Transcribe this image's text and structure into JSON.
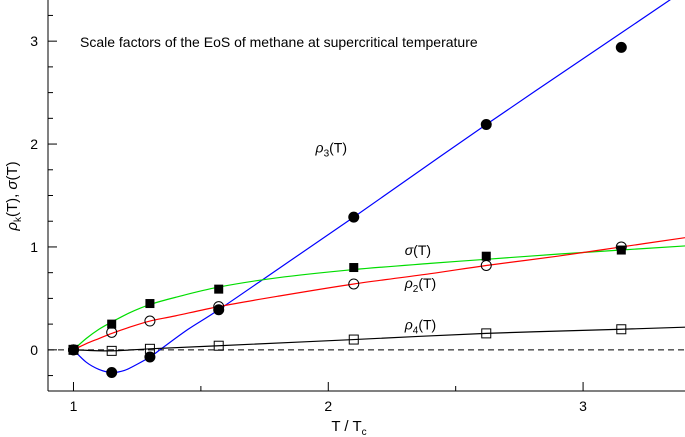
{
  "chart_data": {
    "type": "line",
    "title": "",
    "annotation": "Scale factors of the EoS of methane at supercritical temperature",
    "xlabel": {
      "main": "T / T",
      "sub": "c"
    },
    "ylabel": "ρ_k(T), σ(T)",
    "ylabel_parts": {
      "rho": "ρ",
      "k": "k",
      "rest1": "(T), ",
      "sigma": "σ",
      "rest2": "(T)"
    },
    "xlim": [
      0.9,
      3.4
    ],
    "ylim": [
      -0.4,
      3.4
    ],
    "xticks_major": [
      1,
      2,
      3
    ],
    "xticks_minor": [
      1.5,
      2.5
    ],
    "yticks_major": [
      0,
      1,
      2,
      3
    ],
    "yticks_minor": [
      -0.25,
      0.25,
      0.5,
      0.75,
      1.25,
      1.5,
      1.75,
      2.25,
      2.5,
      2.75,
      3.25
    ],
    "grid": false,
    "reference_line": {
      "y": 0,
      "style": "dashed",
      "color": "#000000"
    },
    "series": [
      {
        "name": "ρ3(T)",
        "label": {
          "main": "ρ",
          "sub": "3",
          "suffix": "(T)",
          "x": 1.95,
          "y": 1.92
        },
        "color": "#0000ff",
        "marker": "filled-circle",
        "points": {
          "x": [
            1.0,
            1.15,
            1.3,
            1.57,
            2.1,
            2.62,
            3.15
          ],
          "y": [
            0.0,
            -0.22,
            -0.07,
            0.39,
            1.29,
            2.19,
            2.94
          ]
        },
        "curve": {
          "x": [
            1.0,
            1.05,
            1.1,
            1.15,
            1.2,
            1.25,
            1.3,
            1.35,
            1.45,
            1.57,
            1.8,
            2.1,
            2.62,
            3.15,
            3.4
          ],
          "y": [
            0.0,
            -0.12,
            -0.19,
            -0.22,
            -0.2,
            -0.14,
            -0.07,
            0.02,
            0.2,
            0.39,
            0.78,
            1.29,
            2.19,
            3.08,
            3.5
          ]
        }
      },
      {
        "name": "σ(T)",
        "label": {
          "main": "σ",
          "sub": "",
          "suffix": "(T)",
          "x": 2.3,
          "y": 0.92
        },
        "color": "#00dd00",
        "marker": "filled-square",
        "points": {
          "x": [
            1.0,
            1.15,
            1.3,
            1.57,
            2.1,
            2.62,
            3.15
          ],
          "y": [
            0.0,
            0.25,
            0.45,
            0.59,
            0.8,
            0.91,
            0.97
          ]
        },
        "curve": {
          "x": [
            1.0,
            1.05,
            1.1,
            1.15,
            1.22,
            1.3,
            1.4,
            1.57,
            1.8,
            2.1,
            2.4,
            2.62,
            2.9,
            3.15,
            3.4
          ],
          "y": [
            0.0,
            0.11,
            0.2,
            0.27,
            0.36,
            0.44,
            0.51,
            0.61,
            0.7,
            0.78,
            0.84,
            0.88,
            0.93,
            0.97,
            1.01
          ]
        }
      },
      {
        "name": "ρ2(T)",
        "label": {
          "main": "ρ",
          "sub": "2",
          "suffix": "(T)",
          "x": 2.3,
          "y": 0.6
        },
        "color": "#ff0000",
        "marker": "open-circle",
        "points": {
          "x": [
            1.0,
            1.15,
            1.3,
            1.57,
            2.1,
            2.62,
            3.15
          ],
          "y": [
            0.0,
            0.17,
            0.28,
            0.42,
            0.64,
            0.82,
            1.0
          ]
        },
        "curve": {
          "x": [
            1.0,
            1.05,
            1.1,
            1.15,
            1.22,
            1.3,
            1.4,
            1.57,
            1.8,
            2.1,
            2.4,
            2.62,
            2.9,
            3.15,
            3.4
          ],
          "y": [
            0.0,
            0.06,
            0.11,
            0.16,
            0.22,
            0.28,
            0.33,
            0.42,
            0.52,
            0.64,
            0.74,
            0.82,
            0.91,
            1.0,
            1.09
          ]
        }
      },
      {
        "name": "ρ4(T)",
        "label": {
          "main": "ρ",
          "sub": "4",
          "suffix": "(T)",
          "x": 2.3,
          "y": 0.2
        },
        "color": "#000000",
        "marker": "open-square",
        "points": {
          "x": [
            1.0,
            1.15,
            1.3,
            1.57,
            2.1,
            2.62,
            3.15
          ],
          "y": [
            0.0,
            -0.01,
            0.01,
            0.04,
            0.1,
            0.16,
            0.2
          ]
        },
        "curve": {
          "x": [
            1.0,
            1.15,
            1.3,
            1.57,
            2.1,
            2.62,
            3.15,
            3.4
          ],
          "y": [
            0.0,
            -0.01,
            0.01,
            0.04,
            0.1,
            0.16,
            0.2,
            0.22
          ]
        }
      }
    ]
  }
}
